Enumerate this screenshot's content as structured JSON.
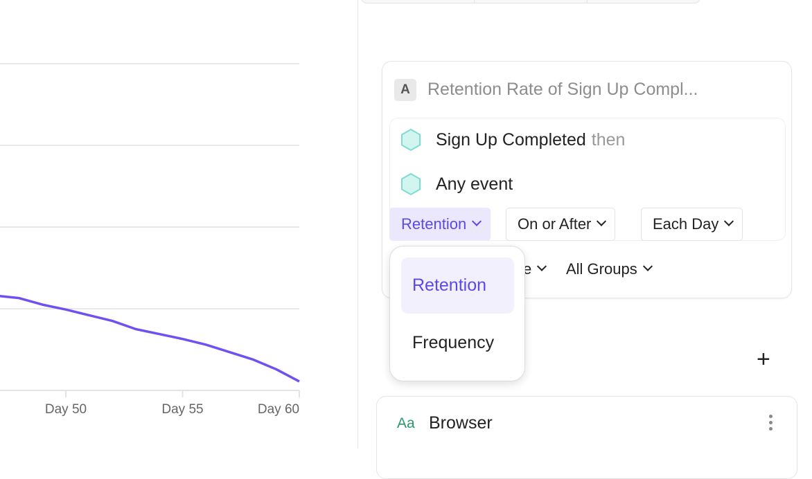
{
  "chart_data": {
    "type": "line",
    "x_tick_labels": [
      "Day 50",
      "Day 55",
      "Day 60"
    ],
    "x_ticks": [
      50,
      55,
      60
    ],
    "xlim": [
      47.2,
      60
    ],
    "ylim": [
      0,
      4
    ],
    "grid": true,
    "color": "#7050f0",
    "series": [
      {
        "x": [
          47,
          48,
          49,
          50,
          51,
          52,
          53,
          54,
          55,
          56,
          57,
          58,
          59,
          60
        ],
        "values": [
          1.16,
          1.13,
          1.05,
          0.99,
          0.92,
          0.85,
          0.75,
          0.69,
          0.63,
          0.56,
          0.47,
          0.38,
          0.26,
          0.11
        ]
      }
    ]
  },
  "query": {
    "badge": "A",
    "title": "Retention Rate of Sign Up Compl...",
    "events": [
      {
        "name": "Sign Up Completed",
        "suffix": "then",
        "icon": "hexagon-icon"
      },
      {
        "name": "Any event",
        "icon": "hexagon-icon"
      }
    ],
    "controls": [
      "Retention",
      "On or After",
      "Each Day"
    ],
    "row2": {
      "partial": "e",
      "groups": "All Groups"
    },
    "accent": "#5b48e8"
  },
  "dropdown": {
    "options": [
      "Retention",
      "Frequency"
    ],
    "selected": "Retention"
  },
  "property": {
    "type_icon": "Aa",
    "name": "Browser"
  }
}
